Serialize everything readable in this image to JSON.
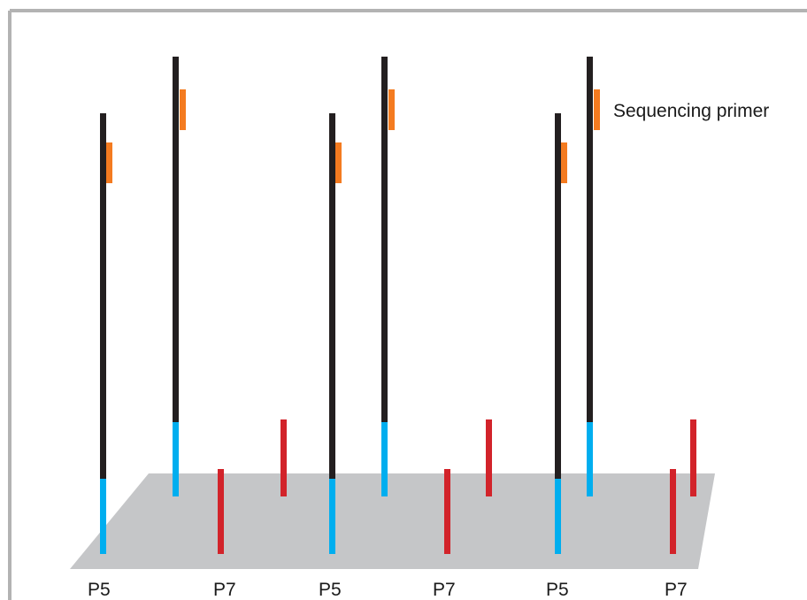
{
  "diagram": {
    "legend_label": "Sequencing primer",
    "bottom_labels": [
      "P5",
      "P7",
      "P5",
      "P7",
      "P5",
      "P7"
    ],
    "colors": {
      "frame": "#b3b3b3",
      "surface": "#c5c6c8",
      "strand": "#231f20",
      "p5_adapter": "#00aeef",
      "p7_adapter": "#d2232a",
      "primer": "#f47b20",
      "text": "#1a1a1a"
    }
  }
}
